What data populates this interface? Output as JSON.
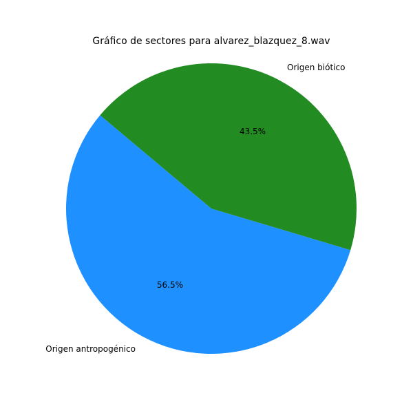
{
  "chart_data": {
    "type": "pie",
    "title": "Gráfico de sectores para alvarez_blazquez_8.wav",
    "slices": [
      {
        "label": "Origen antropogénico",
        "value": 56.5,
        "pct_label": "56.5%",
        "color": "#1e90ff"
      },
      {
        "label": "Origen biótico",
        "value": 43.5,
        "pct_label": "43.5%",
        "color": "#228b22"
      }
    ],
    "start_angle_deg": 140,
    "direction": "counterclockwise"
  }
}
